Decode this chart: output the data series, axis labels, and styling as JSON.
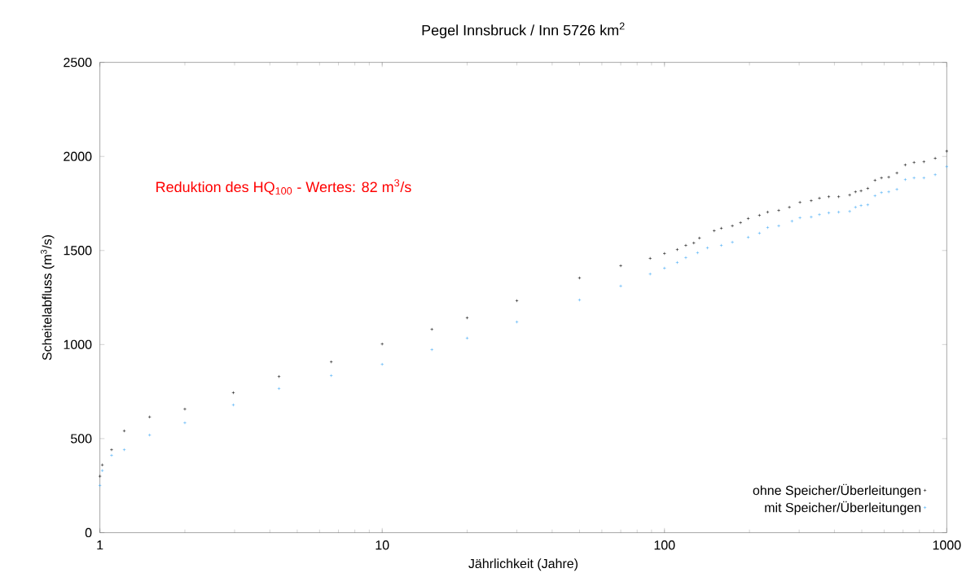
{
  "chart_data": {
    "type": "scatter",
    "title": "Pegel Innsbruck / Inn    5726 km$^{2}$",
    "xlabel": "Jährlichkeit (Jahre)",
    "ylabel": "Scheitelabfluss (m$^{3}$/s)",
    "annotations": [
      "Reduktion des HQ$_{100}$ - Wertes: 82 m$^{3}$/s"
    ],
    "log": "x",
    "xlim": [
      1,
      1000
    ],
    "ylim": [
      0,
      2500
    ],
    "xticks": [
      1,
      10,
      100,
      1000
    ],
    "yticks": [
      0,
      500,
      1000,
      1500,
      2000,
      2500
    ],
    "grid": false,
    "legend": "bottom right",
    "marker": "cross",
    "series": [
      {
        "name": "ohne Speicher/Überleitungen",
        "color": "#000000",
        "x": [
          1,
          1.02,
          1.1,
          1.22,
          1.5,
          2,
          2.97,
          4.31,
          6.6,
          10,
          15,
          20,
          30,
          50,
          70,
          89,
          100,
          111,
          119,
          127,
          133,
          150,
          159,
          174,
          186,
          198,
          217,
          232,
          254,
          277,
          302,
          331,
          354,
          382,
          414,
          453,
          475,
          497,
          525,
          557,
          587,
          623,
          666,
          713,
          766,
          830,
          910,
          1000
        ],
        "values": [
          300,
          360,
          441,
          541,
          615,
          657,
          744,
          830,
          908,
          1003,
          1081,
          1142,
          1233,
          1354,
          1419,
          1458,
          1484,
          1505,
          1527,
          1540,
          1566,
          1605,
          1618,
          1631,
          1648,
          1670,
          1687,
          1704,
          1713,
          1730,
          1756,
          1765,
          1778,
          1786,
          1786,
          1795,
          1812,
          1817,
          1830,
          1873,
          1886,
          1890,
          1912,
          1955,
          1968,
          1972,
          1990,
          2028
        ]
      },
      {
        "name": "mit Speicher/Überleitungen",
        "color": "#3fa9f5",
        "x": [
          1,
          1.02,
          1.1,
          1.22,
          1.5,
          2,
          2.97,
          4.31,
          6.6,
          10,
          15,
          20,
          30,
          50,
          70,
          89,
          100,
          111,
          119,
          131,
          142,
          159,
          174,
          198,
          217,
          232,
          254,
          283,
          302,
          331,
          354,
          382,
          414,
          453,
          475,
          497,
          525,
          557,
          587,
          623,
          666,
          713,
          766,
          830,
          910,
          1000
        ],
        "values": [
          251,
          330,
          411,
          441,
          519,
          584,
          679,
          766,
          835,
          895,
          973,
          1034,
          1120,
          1237,
          1311,
          1375,
          1406,
          1436,
          1462,
          1488,
          1514,
          1527,
          1544,
          1570,
          1592,
          1622,
          1631,
          1656,
          1674,
          1678,
          1691,
          1700,
          1704,
          1708,
          1730,
          1739,
          1743,
          1791,
          1808,
          1812,
          1825,
          1877,
          1886,
          1886,
          1903,
          1946
        ]
      }
    ]
  }
}
